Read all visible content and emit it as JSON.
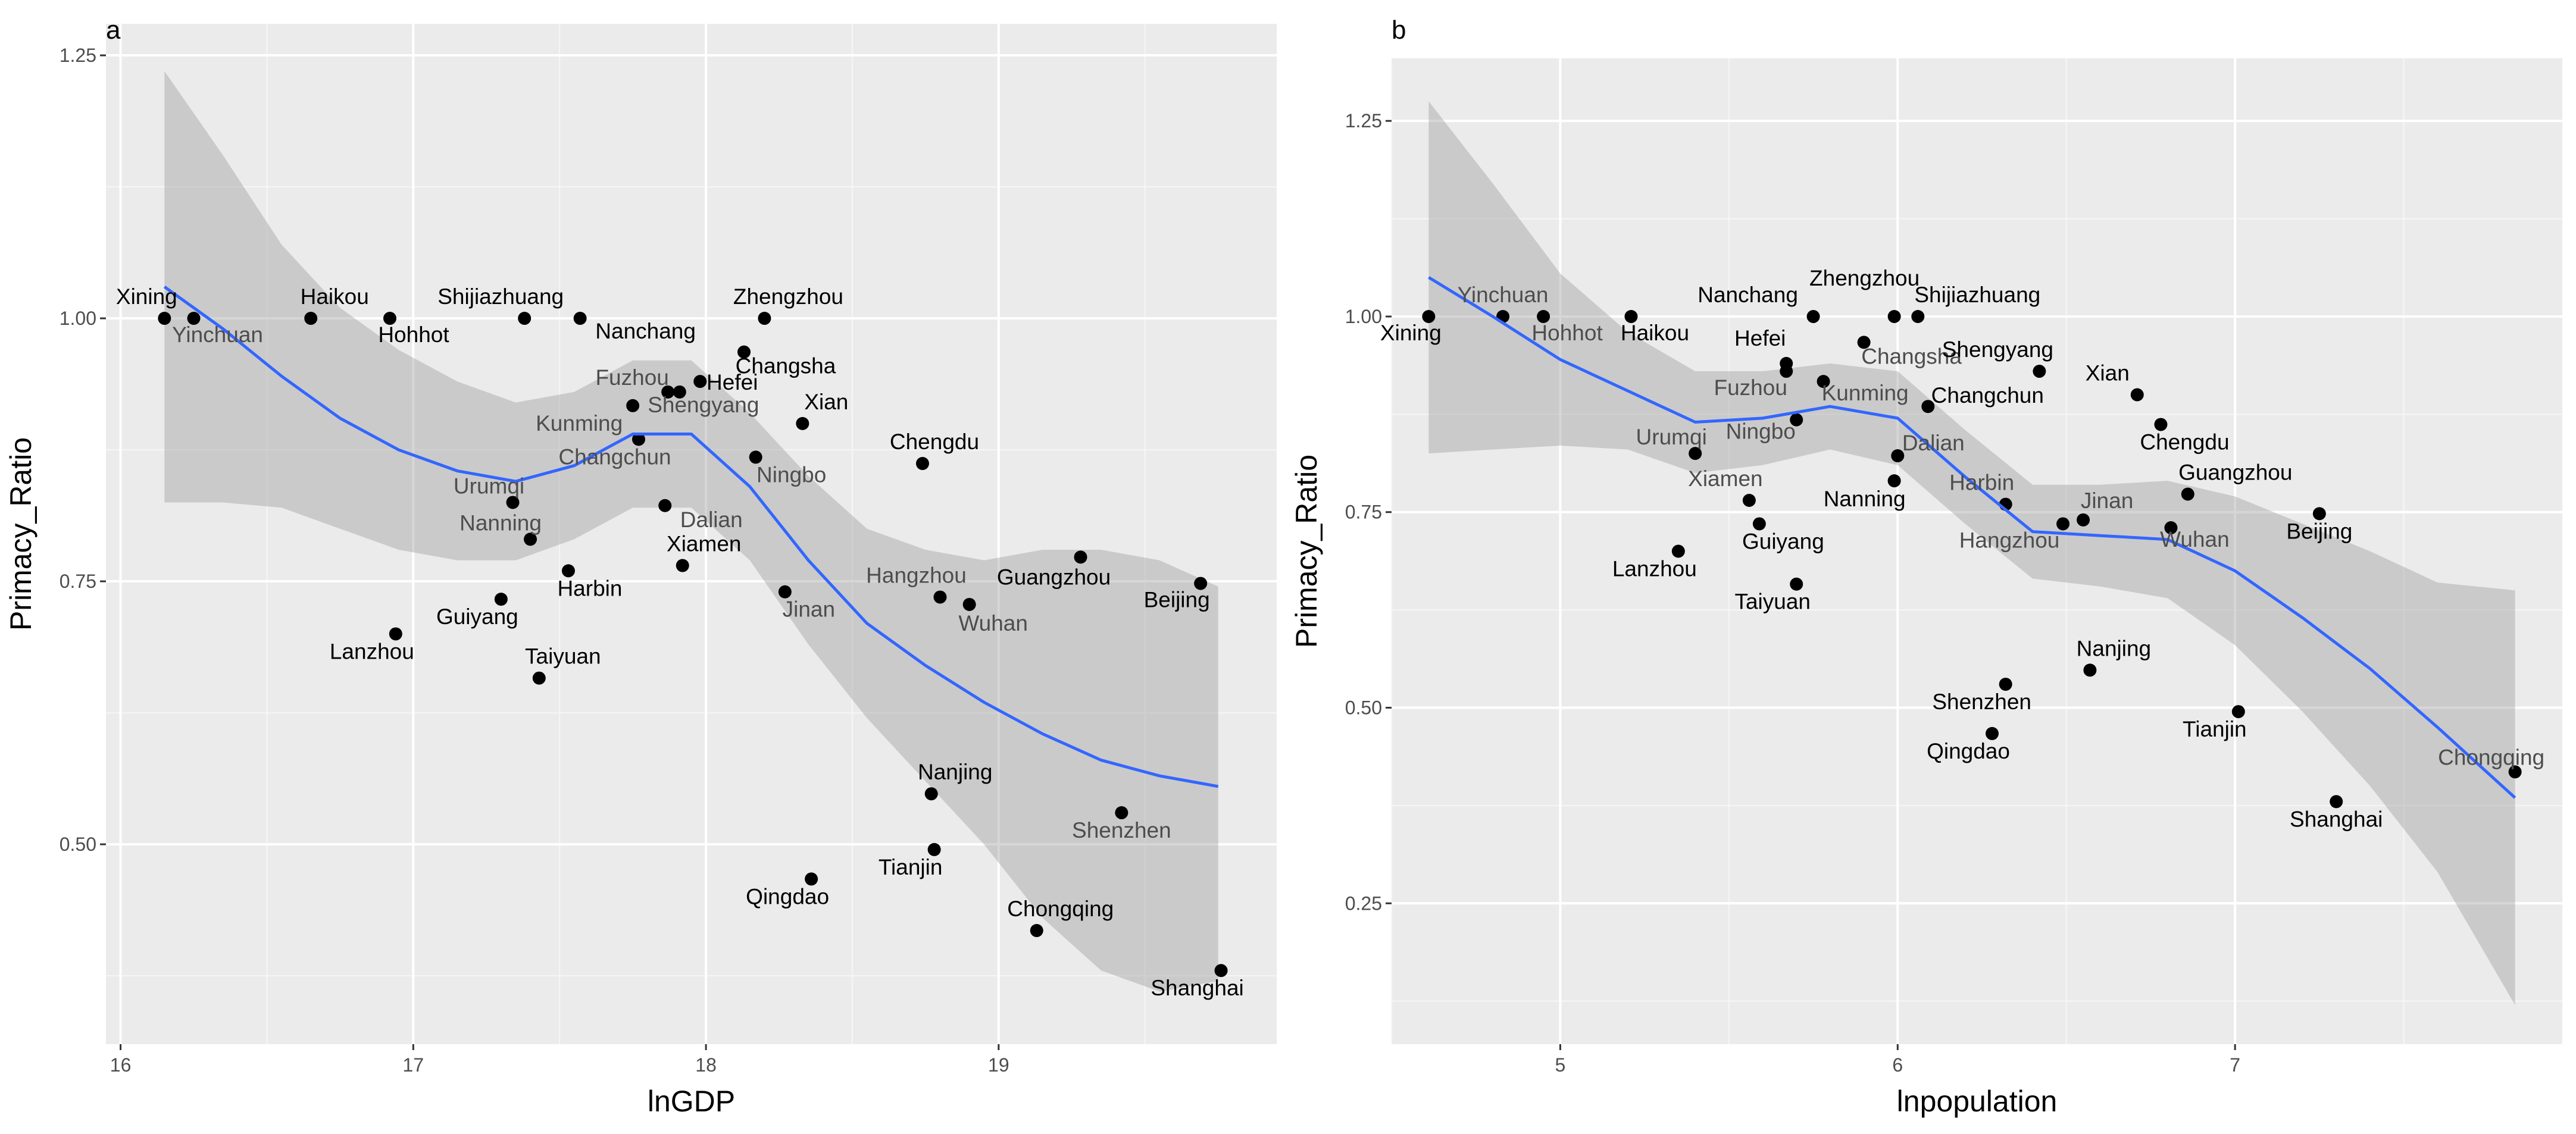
{
  "chart_data": [
    {
      "panel": "a",
      "type": "scatter",
      "xlabel": "lnGDP",
      "ylabel": "Primacy_Ratio",
      "xlim": [
        15.95,
        19.95
      ],
      "ylim": [
        0.31,
        1.28
      ],
      "xticks": [
        16,
        17,
        18,
        19
      ],
      "yticks": [
        0.5,
        0.75,
        1.0,
        1.25
      ],
      "ytick_labels": [
        "0.50",
        "0.75",
        "1.00",
        "1.25"
      ],
      "grid": true,
      "points": [
        {
          "name": "Xining",
          "x": 16.15,
          "y": 1.0
        },
        {
          "name": "Yinchuan",
          "x": 16.25,
          "y": 1.0
        },
        {
          "name": "Haikou",
          "x": 16.65,
          "y": 1.0
        },
        {
          "name": "Hohhot",
          "x": 16.92,
          "y": 1.0
        },
        {
          "name": "Shijiazhuang",
          "x": 17.38,
          "y": 1.0
        },
        {
          "name": "Nanchang",
          "x": 17.57,
          "y": 1.0
        },
        {
          "name": "Zhengzhou",
          "x": 18.2,
          "y": 1.0
        },
        {
          "name": "Changsha",
          "x": 18.13,
          "y": 0.968
        },
        {
          "name": "Hefei",
          "x": 17.98,
          "y": 0.94
        },
        {
          "name": "Fuzhou",
          "x": 17.87,
          "y": 0.93
        },
        {
          "name": "Shengyang",
          "x": 17.91,
          "y": 0.93
        },
        {
          "name": "Kunming",
          "x": 17.75,
          "y": 0.917
        },
        {
          "name": "Xian",
          "x": 18.33,
          "y": 0.9
        },
        {
          "name": "Changchun",
          "x": 17.77,
          "y": 0.885
        },
        {
          "name": "Ningbo",
          "x": 18.17,
          "y": 0.868
        },
        {
          "name": "Chengdu",
          "x": 18.74,
          "y": 0.862
        },
        {
          "name": "Urumqi",
          "x": 17.34,
          "y": 0.825
        },
        {
          "name": "Dalian",
          "x": 17.86,
          "y": 0.822
        },
        {
          "name": "Nanning",
          "x": 17.4,
          "y": 0.79
        },
        {
          "name": "Guangzhou",
          "x": 19.28,
          "y": 0.773
        },
        {
          "name": "Xiamen",
          "x": 17.92,
          "y": 0.765
        },
        {
          "name": "Harbin",
          "x": 17.53,
          "y": 0.76
        },
        {
          "name": "Beijing",
          "x": 19.69,
          "y": 0.748
        },
        {
          "name": "Jinan",
          "x": 18.27,
          "y": 0.74
        },
        {
          "name": "Hangzhou",
          "x": 18.8,
          "y": 0.735
        },
        {
          "name": "Guiyang",
          "x": 17.3,
          "y": 0.733
        },
        {
          "name": "Wuhan",
          "x": 18.9,
          "y": 0.728
        },
        {
          "name": "Lanzhou",
          "x": 16.94,
          "y": 0.7
        },
        {
          "name": "Taiyuan",
          "x": 17.43,
          "y": 0.658
        },
        {
          "name": "Nanjing",
          "x": 18.77,
          "y": 0.548
        },
        {
          "name": "Shenzhen",
          "x": 19.42,
          "y": 0.53
        },
        {
          "name": "Tianjin",
          "x": 18.78,
          "y": 0.495
        },
        {
          "name": "Qingdao",
          "x": 18.36,
          "y": 0.467
        },
        {
          "name": "Chongqing",
          "x": 19.13,
          "y": 0.418
        },
        {
          "name": "Shanghai",
          "x": 19.76,
          "y": 0.38
        }
      ],
      "smooth": {
        "x": [
          16.15,
          16.35,
          16.55,
          16.75,
          16.95,
          17.15,
          17.35,
          17.55,
          17.75,
          17.95,
          18.15,
          18.35,
          18.55,
          18.75,
          18.95,
          19.15,
          19.35,
          19.55,
          19.75
        ],
        "y": [
          1.03,
          0.99,
          0.945,
          0.905,
          0.875,
          0.855,
          0.845,
          0.86,
          0.89,
          0.89,
          0.84,
          0.77,
          0.71,
          0.67,
          0.635,
          0.605,
          0.58,
          0.565,
          0.555
        ],
        "lower": [
          0.825,
          0.825,
          0.82,
          0.8,
          0.78,
          0.77,
          0.77,
          0.79,
          0.82,
          0.82,
          0.77,
          0.69,
          0.62,
          0.56,
          0.5,
          0.43,
          0.38,
          0.36,
          0.37
        ],
        "upper": [
          1.235,
          1.155,
          1.07,
          1.01,
          0.97,
          0.94,
          0.92,
          0.93,
          0.96,
          0.96,
          0.91,
          0.85,
          0.8,
          0.78,
          0.77,
          0.78,
          0.78,
          0.77,
          0.745
        ]
      }
    },
    {
      "panel": "b",
      "type": "scatter",
      "xlabel": "lnpopulation",
      "ylabel": "Primacy_Ratio",
      "xlim": [
        4.5,
        7.97
      ],
      "ylim": [
        0.07,
        1.33
      ],
      "xticks": [
        5,
        6,
        7
      ],
      "yticks": [
        0.25,
        0.5,
        0.75,
        1.0,
        1.25
      ],
      "ytick_labels": [
        "0.25",
        "0.50",
        "0.75",
        "1.00",
        "1.25"
      ],
      "grid": true,
      "points": [
        {
          "name": "Xining",
          "x": 4.61,
          "y": 1.0
        },
        {
          "name": "Yinchuan",
          "x": 4.83,
          "y": 1.0
        },
        {
          "name": "Hohhot",
          "x": 4.95,
          "y": 1.0
        },
        {
          "name": "Haikou",
          "x": 5.21,
          "y": 1.0
        },
        {
          "name": "Nanchang",
          "x": 5.75,
          "y": 1.0
        },
        {
          "name": "Zhengzhou",
          "x": 5.99,
          "y": 1.0
        },
        {
          "name": "Shijiazhuang",
          "x": 6.06,
          "y": 1.0
        },
        {
          "name": "Changsha",
          "x": 5.9,
          "y": 0.967
        },
        {
          "name": "Hefei",
          "x": 5.67,
          "y": 0.94
        },
        {
          "name": "Shengyang",
          "x": 6.42,
          "y": 0.93
        },
        {
          "name": "Fuzhou",
          "x": 5.67,
          "y": 0.93
        },
        {
          "name": "Kunming",
          "x": 5.78,
          "y": 0.917
        },
        {
          "name": "Xian",
          "x": 6.71,
          "y": 0.9
        },
        {
          "name": "Changchun",
          "x": 6.09,
          "y": 0.885
        },
        {
          "name": "Ningbo",
          "x": 5.7,
          "y": 0.868
        },
        {
          "name": "Chengdu",
          "x": 6.78,
          "y": 0.862
        },
        {
          "name": "Urumqi",
          "x": 5.4,
          "y": 0.825
        },
        {
          "name": "Dalian",
          "x": 6.0,
          "y": 0.822
        },
        {
          "name": "Nanning",
          "x": 5.99,
          "y": 0.79
        },
        {
          "name": "Guangzhou",
          "x": 6.86,
          "y": 0.773
        },
        {
          "name": "Harbin",
          "x": 6.32,
          "y": 0.76
        },
        {
          "name": "Xiamen",
          "x": 5.56,
          "y": 0.765
        },
        {
          "name": "Beijing",
          "x": 7.25,
          "y": 0.748
        },
        {
          "name": "Jinan",
          "x": 6.55,
          "y": 0.74
        },
        {
          "name": "Hangzhou",
          "x": 6.49,
          "y": 0.735
        },
        {
          "name": "Guiyang",
          "x": 5.59,
          "y": 0.735
        },
        {
          "name": "Wuhan",
          "x": 6.81,
          "y": 0.73
        },
        {
          "name": "Lanzhou",
          "x": 5.35,
          "y": 0.7
        },
        {
          "name": "Taiyuan",
          "x": 5.7,
          "y": 0.658
        },
        {
          "name": "Nanjing",
          "x": 6.57,
          "y": 0.548
        },
        {
          "name": "Shenzhen",
          "x": 6.32,
          "y": 0.53
        },
        {
          "name": "Tianjin",
          "x": 7.01,
          "y": 0.495
        },
        {
          "name": "Qingdao",
          "x": 6.28,
          "y": 0.467
        },
        {
          "name": "Chongqing",
          "x": 7.83,
          "y": 0.418
        },
        {
          "name": "Shanghai",
          "x": 7.3,
          "y": 0.38
        }
      ],
      "smooth": {
        "x": [
          4.61,
          4.8,
          5.0,
          5.2,
          5.4,
          5.6,
          5.8,
          6.0,
          6.2,
          6.4,
          6.6,
          6.8,
          7.0,
          7.2,
          7.4,
          7.6,
          7.83
        ],
        "y": [
          1.05,
          1.0,
          0.945,
          0.905,
          0.865,
          0.87,
          0.885,
          0.87,
          0.795,
          0.725,
          0.72,
          0.715,
          0.675,
          0.615,
          0.55,
          0.475,
          0.385
        ],
        "lower": [
          0.825,
          0.83,
          0.835,
          0.83,
          0.8,
          0.81,
          0.83,
          0.81,
          0.735,
          0.665,
          0.655,
          0.64,
          0.58,
          0.495,
          0.4,
          0.29,
          0.12
        ],
        "upper": [
          1.275,
          1.17,
          1.055,
          0.98,
          0.93,
          0.93,
          0.94,
          0.93,
          0.855,
          0.785,
          0.785,
          0.79,
          0.77,
          0.735,
          0.7,
          0.66,
          0.65
        ]
      }
    }
  ]
}
